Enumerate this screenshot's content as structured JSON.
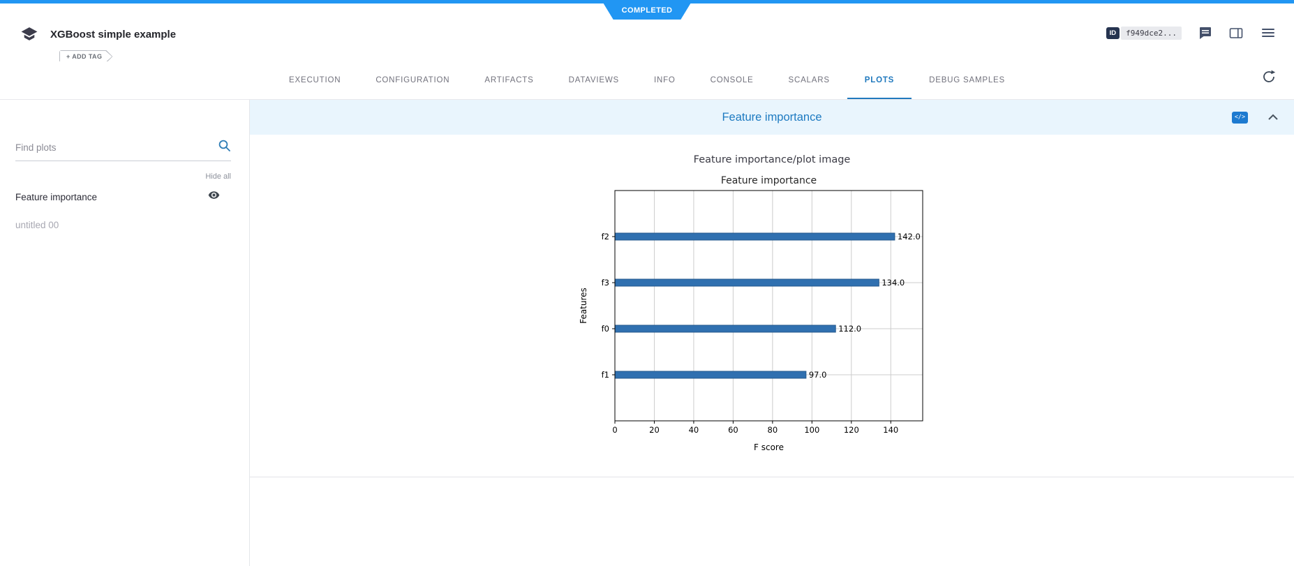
{
  "status": {
    "label": "COMPLETED"
  },
  "header": {
    "title": "XGBoost simple example",
    "add_tag": "+ ADD TAG",
    "id_badge": "ID",
    "id_value": "f949dce2..."
  },
  "tabs": [
    {
      "label": "EXECUTION",
      "active": false
    },
    {
      "label": "CONFIGURATION",
      "active": false
    },
    {
      "label": "ARTIFACTS",
      "active": false
    },
    {
      "label": "DATAVIEWS",
      "active": false
    },
    {
      "label": "INFO",
      "active": false
    },
    {
      "label": "CONSOLE",
      "active": false
    },
    {
      "label": "SCALARS",
      "active": false
    },
    {
      "label": "PLOTS",
      "active": true
    },
    {
      "label": "DEBUG SAMPLES",
      "active": false
    }
  ],
  "sidebar": {
    "search_placeholder": "Find plots",
    "hide_all_label": "Hide all",
    "items": [
      {
        "label": "Feature importance",
        "visible": true
      },
      {
        "label": "untitled 00",
        "visible": false
      }
    ]
  },
  "plot_section": {
    "header_title": "Feature importance",
    "code_badge": "</>",
    "plot_name": "Feature importance/plot image"
  },
  "icons": {
    "logo": "school-stack",
    "comment": "feedback-bubble",
    "board": "panel-view",
    "menu": "hamburger",
    "refresh": "auto-refresh-circular-arrow",
    "search": "magnifier",
    "eye": "visibility",
    "collapse": "chevron-up",
    "code": "</>"
  },
  "colors": {
    "accent": "#2196f3",
    "tab_active": "#2079be",
    "plot_header_bg": "#e9f5fd",
    "plot_title": "#1d7ac1",
    "bar": "#3070b0",
    "bar_edge": "#24598c",
    "grid": "#cccccc"
  },
  "chart_data": {
    "type": "bar",
    "orientation": "horizontal",
    "title": "Feature importance",
    "categories": [
      "f2",
      "f3",
      "f0",
      "f1"
    ],
    "values": [
      142.0,
      134.0,
      112.0,
      97.0
    ],
    "value_labels": [
      "142.0",
      "134.0",
      "112.0",
      "97.0"
    ],
    "xlabel": "F score",
    "ylabel": "Features",
    "xlim": [
      0,
      156.2
    ],
    "xticks": [
      0,
      20,
      40,
      60,
      80,
      100,
      120,
      140
    ],
    "grid": true,
    "legend": false
  }
}
